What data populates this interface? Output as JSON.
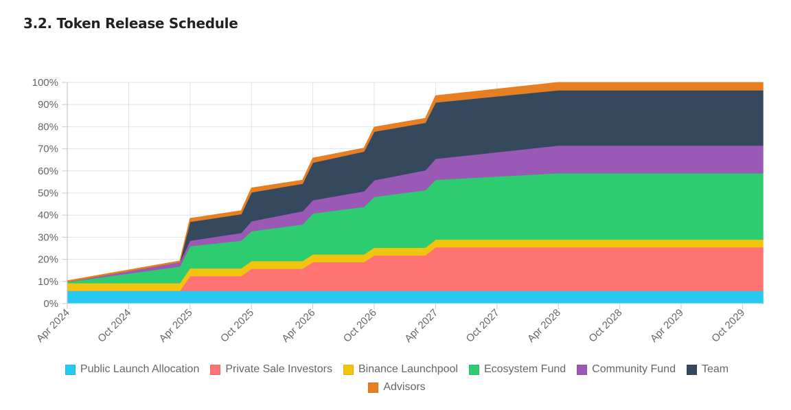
{
  "title": "3.2. Token Release Schedule",
  "chart_data": {
    "type": "area",
    "stacked": true,
    "title": "",
    "xlabel": "",
    "ylabel": "",
    "ylim": [
      0,
      100
    ],
    "y_ticks": [
      "0%",
      "10%",
      "20%",
      "30%",
      "40%",
      "50%",
      "60%",
      "70%",
      "80%",
      "90%",
      "100%"
    ],
    "x_ticks": [
      "Apr 2024",
      "Oct 2024",
      "Apr 2025",
      "Oct 2025",
      "Apr 2026",
      "Oct 2026",
      "Apr 2027",
      "Oct 2027",
      "Apr 2028",
      "Oct 2028",
      "Apr 2029",
      "Oct 2029"
    ],
    "x_months_since_apr_2024": [
      0,
      11,
      12,
      17,
      18,
      23,
      24,
      29,
      30,
      35,
      36,
      48,
      68
    ],
    "x_range_months": [
      0,
      68
    ],
    "grid": true,
    "legend_position": "bottom",
    "series": [
      {
        "name": "Public Launch Allocation",
        "color": "#25c9f2",
        "values": [
          5.8,
          5.8,
          5.8,
          5.8,
          5.8,
          5.8,
          5.8,
          5.8,
          5.8,
          5.8,
          5.8,
          5.8,
          5.8
        ]
      },
      {
        "name": "Private Sale Investors",
        "color": "#ff7373",
        "values": [
          0,
          0,
          6.7,
          6.7,
          10,
          10,
          13,
          13,
          16,
          16,
          19.7,
          19.7,
          19.7
        ]
      },
      {
        "name": "Binance Launchpool",
        "color": "#f1c40f",
        "values": [
          3.5,
          3.5,
          3.5,
          3.5,
          3.5,
          3.5,
          3.5,
          3.5,
          3.5,
          3.5,
          3.5,
          3.5,
          3.5
        ]
      },
      {
        "name": "Ecosystem Fund",
        "color": "#2ecc71",
        "values": [
          0.5,
          7.5,
          10,
          12.5,
          13.5,
          16.5,
          18.5,
          21.5,
          23,
          26,
          27,
          30,
          30
        ]
      },
      {
        "name": "Community Fund",
        "color": "#9b59b6",
        "values": [
          0,
          2,
          2.5,
          3.5,
          4.5,
          6,
          6,
          7,
          7.5,
          9,
          9.5,
          12.5,
          12.5
        ]
      },
      {
        "name": "Team",
        "color": "#34495e",
        "values": [
          0,
          0,
          8.5,
          8.5,
          13,
          12.5,
          17,
          18,
          22,
          21.5,
          25.5,
          25,
          25
        ]
      },
      {
        "name": "Advisors",
        "color": "#e67e22",
        "values": [
          0.5,
          0.5,
          1.5,
          1.5,
          2,
          1.5,
          2,
          1.5,
          2,
          2,
          3,
          3.5,
          3.5
        ]
      }
    ]
  }
}
